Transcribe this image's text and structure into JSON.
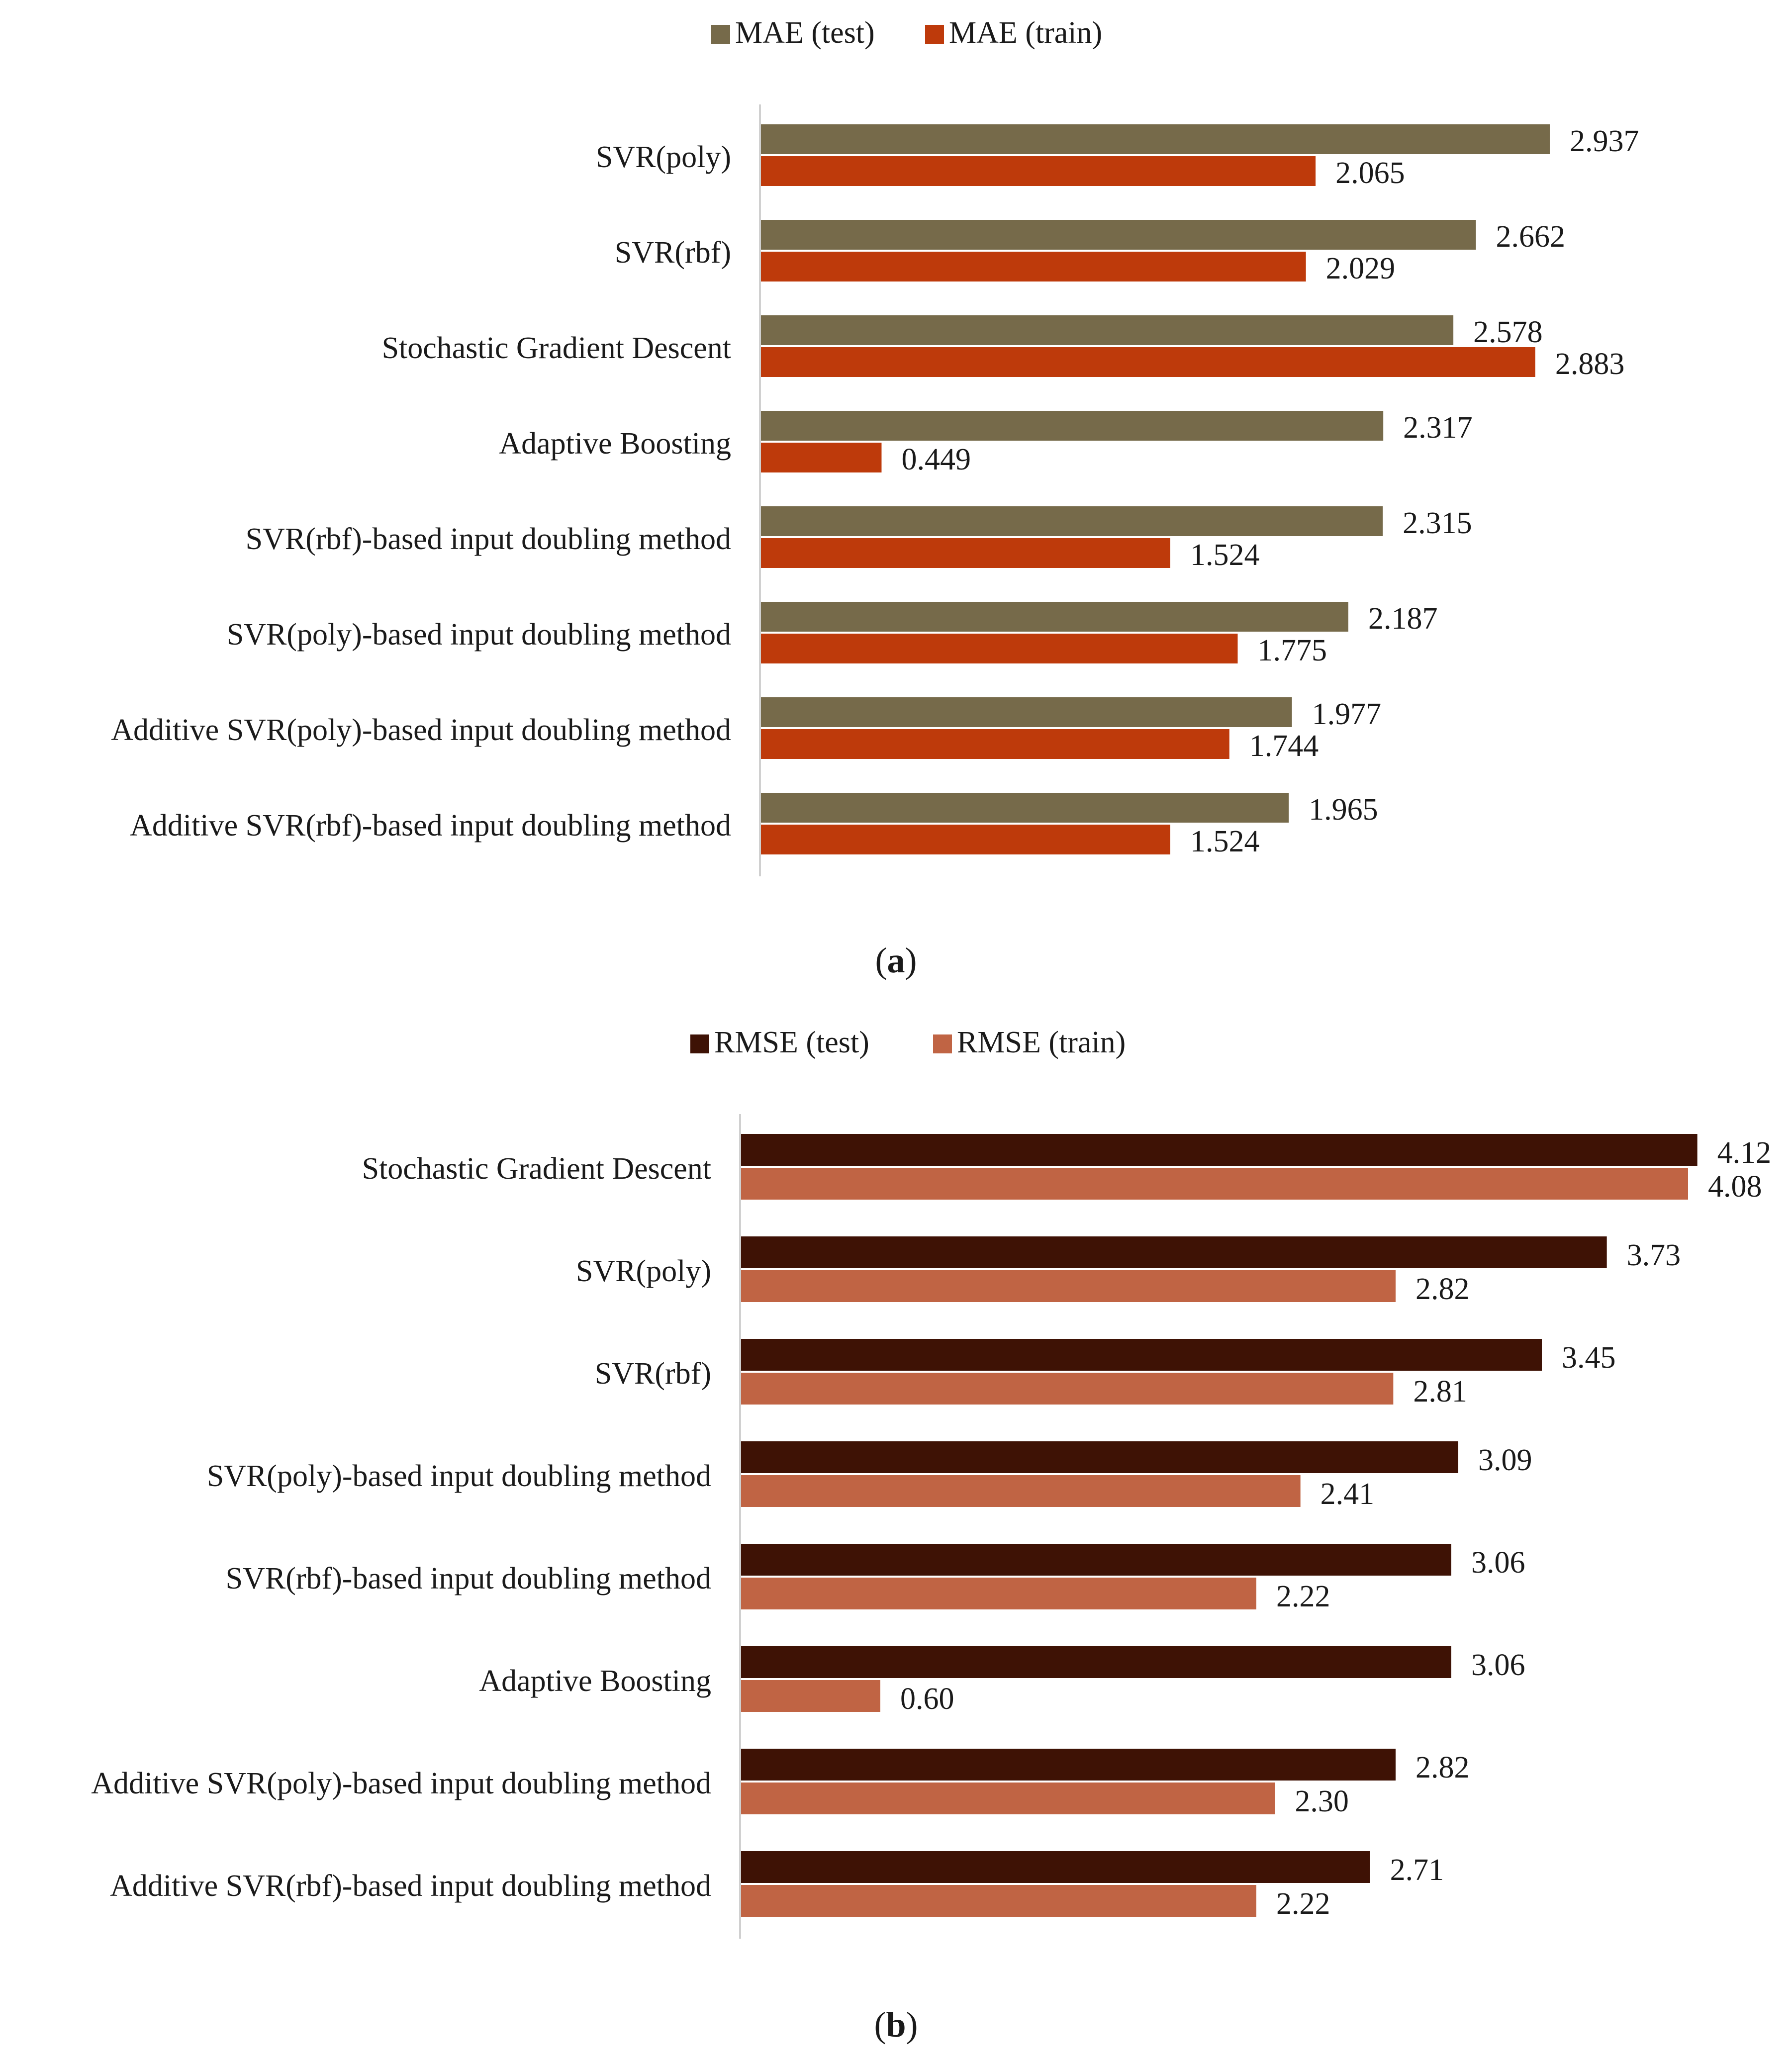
{
  "chart_data": [
    {
      "type": "bar",
      "orientation": "horizontal",
      "panel_label": "a",
      "legend_position": "top-center",
      "grid": false,
      "xlim": [
        0,
        3.0
      ],
      "categories": [
        "SVR(poly)",
        "SVR(rbf)",
        "Stochastic Gradient Descent",
        "Adaptive Boosting",
        "SVR(rbf)-based input doubling method",
        "SVR(poly)-based input doubling method",
        "Additive SVR(poly)-based input doubling method",
        "Additive SVR(rbf)-based input doubling method"
      ],
      "series": [
        {
          "name": "MAE (test)",
          "color": "#766a4a",
          "values": [
            2.937,
            2.662,
            2.578,
            2.317,
            2.315,
            2.187,
            1.977,
            1.965
          ],
          "labels": [
            "2.937",
            "2.662",
            "2.578",
            "2.317",
            "2.315",
            "2.187",
            "1.977",
            "1.965"
          ]
        },
        {
          "name": "MAE (train)",
          "color": "#be3a0b",
          "values": [
            2.065,
            2.029,
            2.883,
            0.449,
            1.524,
            1.775,
            1.744,
            1.524
          ],
          "labels": [
            "2.065",
            "2.029",
            "2.883",
            "0.449",
            "1.524",
            "1.775",
            "1.744",
            "1.524"
          ]
        }
      ]
    },
    {
      "type": "bar",
      "orientation": "horizontal",
      "panel_label": "b",
      "legend_position": "top-center",
      "grid": false,
      "xlim": [
        0,
        4.2
      ],
      "categories": [
        "Stochastic Gradient Descent",
        "SVR(poly)",
        "SVR(rbf)",
        "SVR(poly)-based input doubling method",
        "SVR(rbf)-based input doubling method",
        "Adaptive Boosting",
        "Additive SVR(poly)-based input doubling method",
        "Additive SVR(rbf)-based input doubling method"
      ],
      "series": [
        {
          "name": "RMSE (test)",
          "color": "#3e1205",
          "values": [
            4.12,
            3.73,
            3.45,
            3.09,
            3.06,
            3.06,
            2.82,
            2.71
          ],
          "labels": [
            "4.12",
            "3.73",
            "3.45",
            "3.09",
            "3.06",
            "3.06",
            "2.82",
            "2.71"
          ]
        },
        {
          "name": "RMSE (train)",
          "color": "#c06444",
          "values": [
            4.08,
            2.82,
            2.81,
            2.41,
            2.22,
            0.6,
            2.3,
            2.22
          ],
          "labels": [
            "4.08",
            "2.82",
            "2.81",
            "2.41",
            "2.22",
            "0.60",
            "2.30",
            "2.22"
          ]
        }
      ]
    }
  ]
}
